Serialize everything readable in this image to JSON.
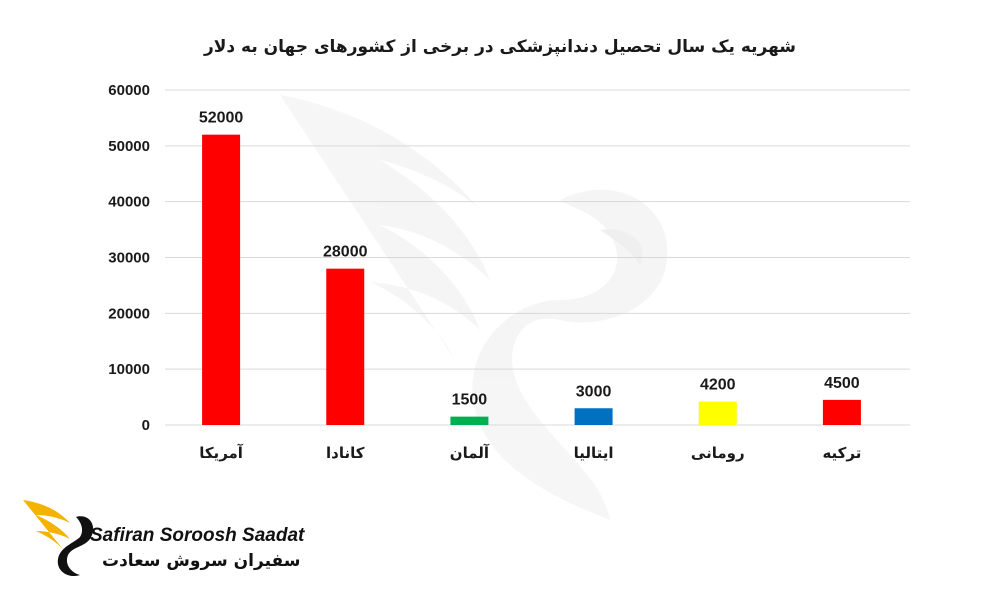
{
  "brand": {
    "name_en": "Safiran Soroosh Saadat",
    "name_fa": "سفیران سروش سعادت"
  },
  "chart_data": {
    "type": "bar",
    "title": "شهریه یک سال تحصیل دندانپزشکی در برخی از کشورهای جهان به دلار",
    "categories": [
      "آمریکا",
      "کانادا",
      "آلمان",
      "ایتالیا",
      "رومانی",
      "ترکیه"
    ],
    "values": [
      52000,
      28000,
      1500,
      3000,
      4200,
      4500
    ],
    "colors": [
      "#ff0000",
      "#ff0000",
      "#00b050",
      "#0070c0",
      "#ffff00",
      "#ff0000"
    ],
    "yticks": [
      0,
      10000,
      20000,
      30000,
      40000,
      50000,
      60000
    ],
    "ylim": [
      0,
      60000
    ],
    "grid": true,
    "legend": "none",
    "data_labels": true
  }
}
